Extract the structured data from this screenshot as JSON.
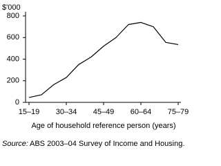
{
  "chart_data": {
    "type": "line",
    "y_unit_label": "$'000",
    "x_axis_title": "Age of household reference person (years)",
    "source_label": "Source:",
    "source_text": "ABS 2003–04 Survey of Income and Housing.",
    "categories": [
      "15–19",
      null,
      null,
      "30–34",
      null,
      null,
      "45–49",
      null,
      null,
      "60–64",
      null,
      null,
      "75–79"
    ],
    "values": [
      45,
      70,
      165,
      230,
      350,
      420,
      520,
      600,
      720,
      740,
      700,
      555,
      535
    ],
    "color": "#000000",
    "ylim": [
      0,
      800
    ],
    "yticks": [
      0,
      200,
      400,
      600,
      800
    ],
    "grid": false
  }
}
